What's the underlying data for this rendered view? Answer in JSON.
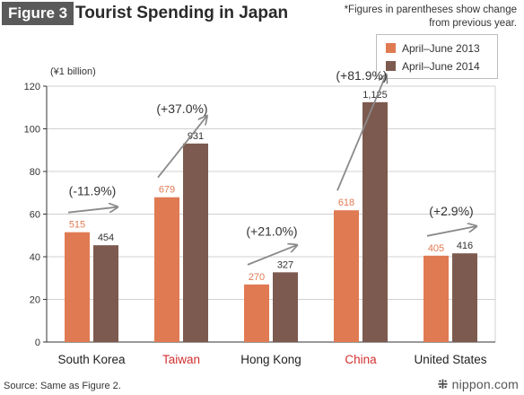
{
  "header": {
    "figure_label": "Figure 3",
    "title": "Tourist Spending in Japan",
    "note": "*Figures in parentheses show change from previous year."
  },
  "unit_label": "(¥1 billion)",
  "source": "Source: Same as Figure 2.",
  "logo": {
    "text": "nippon.com",
    "icon": "dotted-rays-icon"
  },
  "colors": {
    "series_2013": "#e07a52",
    "series_2014": "#7d5a4f",
    "highlight_label": "#d32f2f",
    "arrow": "#8a8a8a",
    "grid": "#d0d0d0",
    "axis": "#333333"
  },
  "chart_data": {
    "type": "bar",
    "title": "Tourist Spending in Japan",
    "xlabel": "",
    "ylabel": "(¥1 billion)",
    "ylim": [
      0,
      120
    ],
    "yticks": [
      0,
      20,
      40,
      60,
      80,
      100,
      120
    ],
    "grid": true,
    "legend_position": "top-right",
    "categories": [
      "South Korea",
      "Taiwan",
      "Hong Kong",
      "China",
      "United States"
    ],
    "highlight_categories": [
      "Taiwan",
      "China"
    ],
    "series": [
      {
        "name": "April–June 2013",
        "values": [
          51.5,
          67.9,
          27.0,
          61.8,
          40.5
        ],
        "labels": [
          "515",
          "679",
          "270",
          "618",
          "405"
        ]
      },
      {
        "name": "April–June 2014",
        "values": [
          45.4,
          93.1,
          32.7,
          112.5,
          41.6
        ],
        "labels": [
          "454",
          "931",
          "327",
          "1,125",
          "416"
        ]
      }
    ],
    "changes": [
      "(-11.9%)",
      "(+37.0%)",
      "(+21.0%)",
      "(+81.9%)",
      "(+2.9%)"
    ]
  }
}
